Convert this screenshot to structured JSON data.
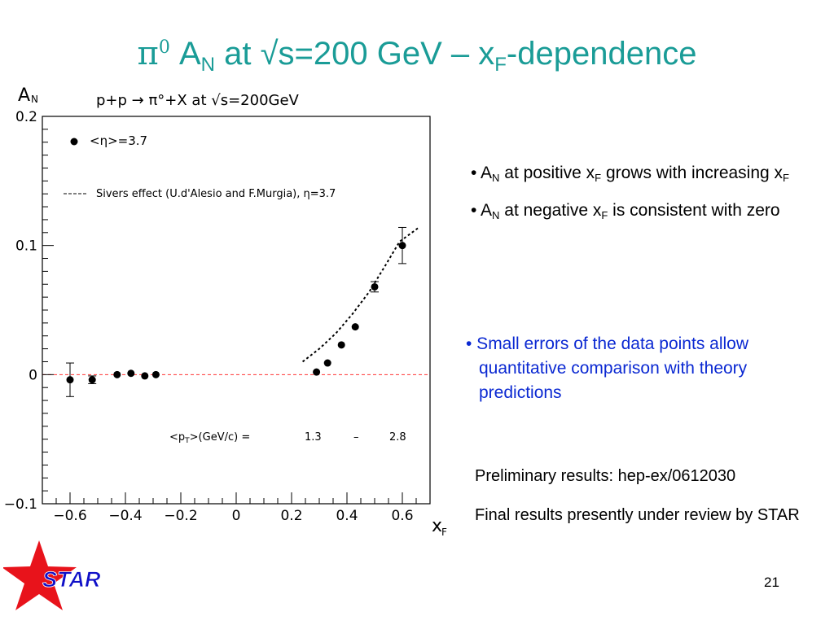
{
  "slide": {
    "title_prefix": "π",
    "title_zero": "0",
    "title_A": "A",
    "title_sub_N": "N",
    "title_mid": " at √s=200 GeV – x",
    "title_sub_F": "F",
    "title_suffix": "-dependence",
    "page_number": "21",
    "logo_text": "STAR",
    "colors": {
      "title": "#1a9c97",
      "blue_text": "#0a28d2",
      "logo_star": "#e8131b",
      "logo_text": "#1010c8",
      "zero_line": "#ff3333"
    }
  },
  "bullets": [
    {
      "parts": [
        "• A",
        "N",
        " at positive x",
        "F",
        " grows with increasing x",
        "F",
        ""
      ]
    },
    {
      "parts": [
        "• A",
        "N",
        " at negative x",
        "F",
        " is consistent with zero",
        "",
        ""
      ]
    }
  ],
  "bullet_blue": "• Small errors of the data points allow quantitative comparison with theory predictions",
  "notes": [
    "Preliminary results:  hep-ex/0612030",
    "Final results presently under review by STAR"
  ],
  "chart_data": {
    "type": "scatter",
    "title": "p+p → π°+X at √s=200GeV",
    "ylabel": "A",
    "ylabel_sub": "N",
    "xlabel": "x",
    "xlabel_sub": "F",
    "xlim": [
      -0.7,
      0.7
    ],
    "ylim": [
      -0.1,
      0.2
    ],
    "x_ticks": [
      -0.6,
      -0.4,
      -0.2,
      0,
      0.2,
      0.4,
      0.6
    ],
    "x_tick_labels": [
      "−0.6",
      "−0.4",
      "−0.2",
      "0",
      "0.2",
      "0.4",
      "0.6"
    ],
    "y_ticks": [
      -0.1,
      0,
      0.1,
      0.2
    ],
    "y_tick_labels": [
      "−0.1",
      "0",
      "0.1",
      "0.2"
    ],
    "legend": "<η>=3.7",
    "zero_line": true,
    "series": [
      {
        "name": "<η>=3.7",
        "points": [
          {
            "x": -0.6,
            "y": -0.004,
            "err": 0.013
          },
          {
            "x": -0.52,
            "y": -0.004,
            "err": 0.003
          },
          {
            "x": -0.43,
            "y": 0.0,
            "err": 0.002
          },
          {
            "x": -0.38,
            "y": 0.001,
            "err": 0.002
          },
          {
            "x": -0.33,
            "y": -0.001,
            "err": 0.002
          },
          {
            "x": -0.29,
            "y": 0.0,
            "err": 0.002
          },
          {
            "x": 0.29,
            "y": 0.002,
            "err": 0.001
          },
          {
            "x": 0.33,
            "y": 0.009,
            "err": 0.001
          },
          {
            "x": 0.38,
            "y": 0.023,
            "err": 0.001
          },
          {
            "x": 0.43,
            "y": 0.037,
            "err": 0.001
          },
          {
            "x": 0.5,
            "y": 0.068,
            "err": 0.004
          },
          {
            "x": 0.6,
            "y": 0.1,
            "err": 0.014
          }
        ]
      }
    ],
    "theory": {
      "name": "Sivers effect (U.d'Alesio and F.Murgia), η=3.7",
      "style": "dotted",
      "points": [
        [
          0.24,
          0.01
        ],
        [
          0.3,
          0.02
        ],
        [
          0.36,
          0.032
        ],
        [
          0.42,
          0.047
        ],
        [
          0.48,
          0.064
        ],
        [
          0.54,
          0.085
        ],
        [
          0.59,
          0.103
        ],
        [
          0.66,
          0.114
        ]
      ]
    },
    "pt_annotation": {
      "label": "<p",
      "label_sub": "T",
      "label_rest": ">(GeV/c) =",
      "low": "1.3",
      "dash": "–",
      "high": "2.8"
    }
  }
}
